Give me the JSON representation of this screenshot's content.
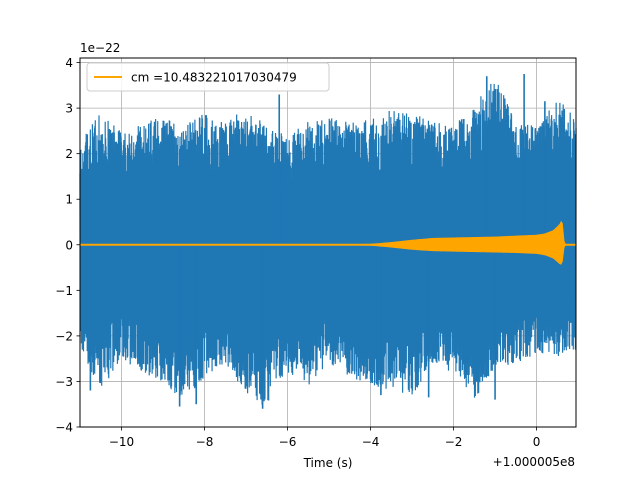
{
  "chart_data": {
    "type": "line",
    "title": "",
    "xlabel": "Time (s)",
    "ylabel": "",
    "x_offset_label": "+1.000005e8",
    "y_scale_label": "1e−22",
    "xlim": [
      -11.0,
      0.95
    ],
    "ylim": [
      -4.0,
      4.1
    ],
    "grid": true,
    "legend_position": "top-left",
    "x_ticks": [
      {
        "value": -10,
        "label": "−10"
      },
      {
        "value": -8,
        "label": "−8"
      },
      {
        "value": -6,
        "label": "−6"
      },
      {
        "value": -4,
        "label": "−4"
      },
      {
        "value": -2,
        "label": "−2"
      },
      {
        "value": 0,
        "label": "0"
      }
    ],
    "y_ticks": [
      {
        "value": -4,
        "label": "−4"
      },
      {
        "value": -3,
        "label": "−3"
      },
      {
        "value": -2,
        "label": "−2"
      },
      {
        "value": -1,
        "label": "−1"
      },
      {
        "value": 0,
        "label": "0"
      },
      {
        "value": 1,
        "label": "1"
      },
      {
        "value": 2,
        "label": "2"
      },
      {
        "value": 3,
        "label": "3"
      },
      {
        "value": 4,
        "label": "4"
      }
    ],
    "series": [
      {
        "name": "",
        "color": "#1f77b4",
        "description": "noise-dominated strain data",
        "envelope_x": [
          -11.0,
          -10.5,
          -10.0,
          -9.5,
          -9.0,
          -8.5,
          -8.0,
          -7.5,
          -7.0,
          -6.5,
          -6.0,
          -5.5,
          -5.0,
          -4.5,
          -4.0,
          -3.5,
          -3.0,
          -2.5,
          -2.0,
          -1.5,
          -1.0,
          -0.5,
          0.0,
          0.5,
          0.95
        ],
        "envelope_upper": [
          2.3,
          2.9,
          2.5,
          2.7,
          2.8,
          2.6,
          2.9,
          2.7,
          3.0,
          2.6,
          2.4,
          2.7,
          2.8,
          2.7,
          2.8,
          3.0,
          2.9,
          2.7,
          2.6,
          3.1,
          3.7,
          2.7,
          2.6,
          3.2,
          2.9
        ],
        "envelope_lower": [
          -2.3,
          -3.2,
          -2.5,
          -2.8,
          -3.0,
          -3.5,
          -2.9,
          -2.6,
          -3.4,
          -3.6,
          -2.8,
          -3.1,
          -2.6,
          -2.9,
          -3.1,
          -3.2,
          -3.3,
          -2.7,
          -2.8,
          -3.4,
          -2.7,
          -2.6,
          -2.4,
          -2.5,
          -2.3
        ],
        "spikes": [
          {
            "x": -10.75,
            "y": -3.2
          },
          {
            "x": -8.6,
            "y": -3.55
          },
          {
            "x": -8.2,
            "y": -3.5
          },
          {
            "x": -6.6,
            "y": -3.6
          },
          {
            "x": -6.2,
            "y": 3.3
          },
          {
            "x": -3.75,
            "y": -3.3
          },
          {
            "x": -2.6,
            "y": -3.35
          },
          {
            "x": -1.0,
            "y": -3.4
          },
          {
            "x": -1.2,
            "y": 3.7
          },
          {
            "x": -0.3,
            "y": 3.75
          },
          {
            "x": 0.2,
            "y": 3.15
          }
        ]
      },
      {
        "name": "cm =10.483221017030479",
        "color": "#ffa500",
        "description": "chirp waveform template",
        "envelope_x": [
          -11.0,
          -6.0,
          -5.0,
          -4.0,
          -3.5,
          -3.0,
          -2.5,
          -2.0,
          -1.5,
          -1.0,
          -0.5,
          0.0,
          0.2,
          0.4,
          0.55,
          0.62,
          0.68,
          0.95
        ],
        "envelope_upper": [
          0.0,
          0.0,
          0.005,
          0.02,
          0.06,
          0.11,
          0.15,
          0.16,
          0.17,
          0.18,
          0.2,
          0.22,
          0.25,
          0.32,
          0.45,
          0.58,
          0.0,
          0.0
        ],
        "envelope_lower": [
          0.0,
          0.0,
          -0.005,
          -0.02,
          -0.06,
          -0.11,
          -0.14,
          -0.15,
          -0.16,
          -0.17,
          -0.18,
          -0.2,
          -0.23,
          -0.3,
          -0.42,
          -0.45,
          0.0,
          0.0
        ]
      }
    ]
  }
}
